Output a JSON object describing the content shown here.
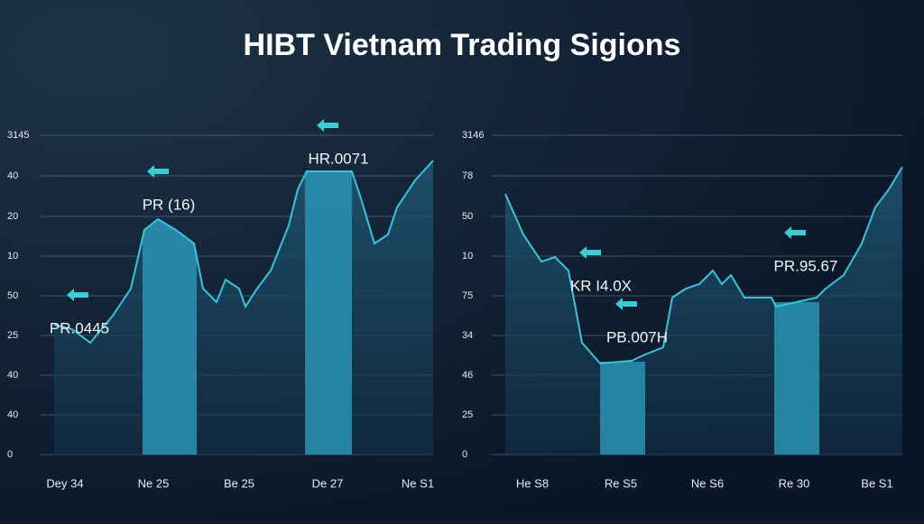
{
  "title": "HIBT Vietnam  Trading Sigions",
  "panels": [
    {
      "y_labels": [
        "3145",
        "40",
        "20",
        "10",
        "50",
        "25",
        "40",
        "40",
        "0"
      ],
      "x_labels": [
        "Dey 34",
        "Ne 25",
        "Be 25",
        "De 27",
        "Ne S1"
      ],
      "annotations": [
        "PR.0445",
        "PR (16)",
        "HR.0071"
      ]
    },
    {
      "y_labels": [
        "3146",
        "78",
        "50",
        "10",
        "75",
        "34",
        "46",
        "25",
        "0"
      ],
      "x_labels": [
        "He S8",
        "Re S5",
        "Ne S6",
        "Re 30",
        "Be S1"
      ],
      "annotations": [
        "KR I4.0X",
        "PB.007H",
        "PR.95.67"
      ]
    }
  ]
}
